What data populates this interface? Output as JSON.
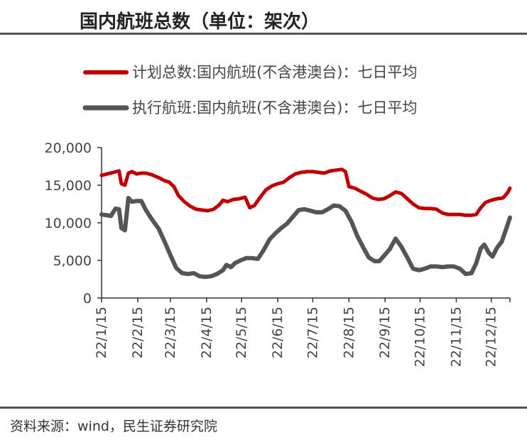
{
  "title": "国内航班总数（单位：架次）",
  "source": "资料来源：wind，民生证券研究院",
  "colors": {
    "planned": "#c00000",
    "executed": "#555555",
    "axis": "#333333",
    "rule": "#555555"
  },
  "chart_data": {
    "type": "line",
    "title": "国内航班总数（单位：架次）",
    "xlabel": "",
    "ylabel": "",
    "ylim": [
      0,
      20000
    ],
    "yticks": [
      0,
      5000,
      10000,
      15000,
      20000
    ],
    "ytick_labels": [
      "0",
      "5,000",
      "10,000",
      "15,000",
      "20,000"
    ],
    "xlim": [
      "2022-01-15",
      "2022-12-31"
    ],
    "xtick_labels": [
      "22/1/15",
      "22/2/15",
      "22/3/15",
      "22/4/15",
      "22/5/15",
      "22/6/15",
      "22/7/15",
      "22/8/15",
      "22/9/15",
      "22/10/15",
      "22/11/15",
      "22/12/15"
    ],
    "xtick_dates": [
      "2022-01-15",
      "2022-02-15",
      "2022-03-15",
      "2022-04-15",
      "2022-05-15",
      "2022-06-15",
      "2022-07-15",
      "2022-08-15",
      "2022-09-15",
      "2022-10-15",
      "2022-11-15",
      "2022-12-15"
    ],
    "grid": false,
    "legend_position": "top",
    "series": [
      {
        "name": "计划总数:国内航班(不含港澳台)：七日平均",
        "color": "#c00000",
        "points": [
          [
            "2022-01-15",
            16300
          ],
          [
            "2022-01-20",
            16500
          ],
          [
            "2022-01-25",
            16700
          ],
          [
            "2022-01-30",
            16900
          ],
          [
            "2022-02-01",
            15200
          ],
          [
            "2022-02-04",
            15000
          ],
          [
            "2022-02-07",
            16600
          ],
          [
            "2022-02-10",
            16800
          ],
          [
            "2022-02-14",
            16500
          ],
          [
            "2022-02-18",
            16600
          ],
          [
            "2022-02-22",
            16600
          ],
          [
            "2022-02-27",
            16400
          ],
          [
            "2022-03-05",
            16000
          ],
          [
            "2022-03-10",
            15600
          ],
          [
            "2022-03-14",
            15400
          ],
          [
            "2022-03-18",
            14800
          ],
          [
            "2022-03-22",
            13600
          ],
          [
            "2022-03-27",
            12800
          ],
          [
            "2022-04-01",
            12200
          ],
          [
            "2022-04-06",
            11800
          ],
          [
            "2022-04-11",
            11700
          ],
          [
            "2022-04-16",
            11600
          ],
          [
            "2022-04-21",
            11800
          ],
          [
            "2022-04-26",
            12400
          ],
          [
            "2022-04-29",
            13000
          ],
          [
            "2022-05-03",
            12800
          ],
          [
            "2022-05-08",
            13100
          ],
          [
            "2022-05-13",
            13200
          ],
          [
            "2022-05-18",
            13400
          ],
          [
            "2022-05-22",
            12000
          ],
          [
            "2022-05-26",
            12300
          ],
          [
            "2022-05-31",
            13400
          ],
          [
            "2022-06-05",
            14400
          ],
          [
            "2022-06-10",
            14900
          ],
          [
            "2022-06-15",
            15200
          ],
          [
            "2022-06-20",
            15400
          ],
          [
            "2022-06-25",
            16000
          ],
          [
            "2022-06-30",
            16500
          ],
          [
            "2022-07-05",
            16700
          ],
          [
            "2022-07-10",
            16800
          ],
          [
            "2022-07-15",
            16800
          ],
          [
            "2022-07-20",
            16700
          ],
          [
            "2022-07-25",
            16600
          ],
          [
            "2022-07-30",
            16900
          ],
          [
            "2022-08-04",
            17000
          ],
          [
            "2022-08-09",
            17100
          ],
          [
            "2022-08-12",
            16800
          ],
          [
            "2022-08-15",
            14800
          ],
          [
            "2022-08-20",
            14600
          ],
          [
            "2022-08-25",
            14200
          ],
          [
            "2022-08-30",
            13800
          ],
          [
            "2022-09-04",
            13300
          ],
          [
            "2022-09-09",
            13100
          ],
          [
            "2022-09-14",
            13200
          ],
          [
            "2022-09-19",
            13600
          ],
          [
            "2022-09-24",
            14100
          ],
          [
            "2022-09-29",
            13900
          ],
          [
            "2022-10-04",
            13200
          ],
          [
            "2022-10-09",
            12500
          ],
          [
            "2022-10-14",
            12000
          ],
          [
            "2022-10-19",
            11900
          ],
          [
            "2022-10-24",
            11900
          ],
          [
            "2022-10-29",
            11800
          ],
          [
            "2022-11-03",
            11300
          ],
          [
            "2022-11-08",
            11100
          ],
          [
            "2022-11-13",
            11100
          ],
          [
            "2022-11-18",
            11100
          ],
          [
            "2022-11-23",
            11000
          ],
          [
            "2022-11-28",
            11000
          ],
          [
            "2022-12-02",
            11100
          ],
          [
            "2022-12-06",
            12000
          ],
          [
            "2022-12-10",
            12700
          ],
          [
            "2022-12-15",
            13000
          ],
          [
            "2022-12-20",
            13200
          ],
          [
            "2022-12-25",
            13300
          ],
          [
            "2022-12-29",
            14000
          ],
          [
            "2022-12-31",
            14600
          ]
        ]
      },
      {
        "name": "执行航班:国内航班(不含港澳台)：七日平均",
        "color": "#555555",
        "points": [
          [
            "2022-01-15",
            11100
          ],
          [
            "2022-01-20",
            11000
          ],
          [
            "2022-01-23",
            10900
          ],
          [
            "2022-01-27",
            11900
          ],
          [
            "2022-01-30",
            11800
          ],
          [
            "2022-02-01",
            9300
          ],
          [
            "2022-02-04",
            9000
          ],
          [
            "2022-02-07",
            13300
          ],
          [
            "2022-02-10",
            12800
          ],
          [
            "2022-02-14",
            12900
          ],
          [
            "2022-02-18",
            12900
          ],
          [
            "2022-02-22",
            11700
          ],
          [
            "2022-02-27",
            10500
          ],
          [
            "2022-03-05",
            9200
          ],
          [
            "2022-03-10",
            7500
          ],
          [
            "2022-03-15",
            5700
          ],
          [
            "2022-03-20",
            4000
          ],
          [
            "2022-03-25",
            3300
          ],
          [
            "2022-03-30",
            3200
          ],
          [
            "2022-04-04",
            3300
          ],
          [
            "2022-04-09",
            2900
          ],
          [
            "2022-04-14",
            2800
          ],
          [
            "2022-04-19",
            2900
          ],
          [
            "2022-04-24",
            3200
          ],
          [
            "2022-04-29",
            3700
          ],
          [
            "2022-05-02",
            4400
          ],
          [
            "2022-05-06",
            4100
          ],
          [
            "2022-05-09",
            4600
          ],
          [
            "2022-05-14",
            5000
          ],
          [
            "2022-05-19",
            5300
          ],
          [
            "2022-05-24",
            5300
          ],
          [
            "2022-05-29",
            5200
          ],
          [
            "2022-06-03",
            6400
          ],
          [
            "2022-06-08",
            7800
          ],
          [
            "2022-06-13",
            8600
          ],
          [
            "2022-06-18",
            9300
          ],
          [
            "2022-06-23",
            9900
          ],
          [
            "2022-06-28",
            10800
          ],
          [
            "2022-07-03",
            11700
          ],
          [
            "2022-07-08",
            11800
          ],
          [
            "2022-07-13",
            11600
          ],
          [
            "2022-07-18",
            11400
          ],
          [
            "2022-07-23",
            11400
          ],
          [
            "2022-07-28",
            11800
          ],
          [
            "2022-08-02",
            12300
          ],
          [
            "2022-08-07",
            12200
          ],
          [
            "2022-08-12",
            11600
          ],
          [
            "2022-08-17",
            10200
          ],
          [
            "2022-08-22",
            8300
          ],
          [
            "2022-08-27",
            6800
          ],
          [
            "2022-09-01",
            5400
          ],
          [
            "2022-09-06",
            4900
          ],
          [
            "2022-09-10",
            4900
          ],
          [
            "2022-09-14",
            5600
          ],
          [
            "2022-09-19",
            6500
          ],
          [
            "2022-09-24",
            7900
          ],
          [
            "2022-09-29",
            6800
          ],
          [
            "2022-10-04",
            5400
          ],
          [
            "2022-10-09",
            3900
          ],
          [
            "2022-10-14",
            3700
          ],
          [
            "2022-10-19",
            3900
          ],
          [
            "2022-10-24",
            4200
          ],
          [
            "2022-10-29",
            4200
          ],
          [
            "2022-11-03",
            4100
          ],
          [
            "2022-11-08",
            4200
          ],
          [
            "2022-11-13",
            4200
          ],
          [
            "2022-11-18",
            3900
          ],
          [
            "2022-11-23",
            3200
          ],
          [
            "2022-11-28",
            3300
          ],
          [
            "2022-12-02",
            4600
          ],
          [
            "2022-12-06",
            6600
          ],
          [
            "2022-12-09",
            7100
          ],
          [
            "2022-12-13",
            6000
          ],
          [
            "2022-12-16",
            5500
          ],
          [
            "2022-12-20",
            6700
          ],
          [
            "2022-12-24",
            7500
          ],
          [
            "2022-12-28",
            9300
          ],
          [
            "2022-12-31",
            10700
          ]
        ]
      }
    ]
  }
}
